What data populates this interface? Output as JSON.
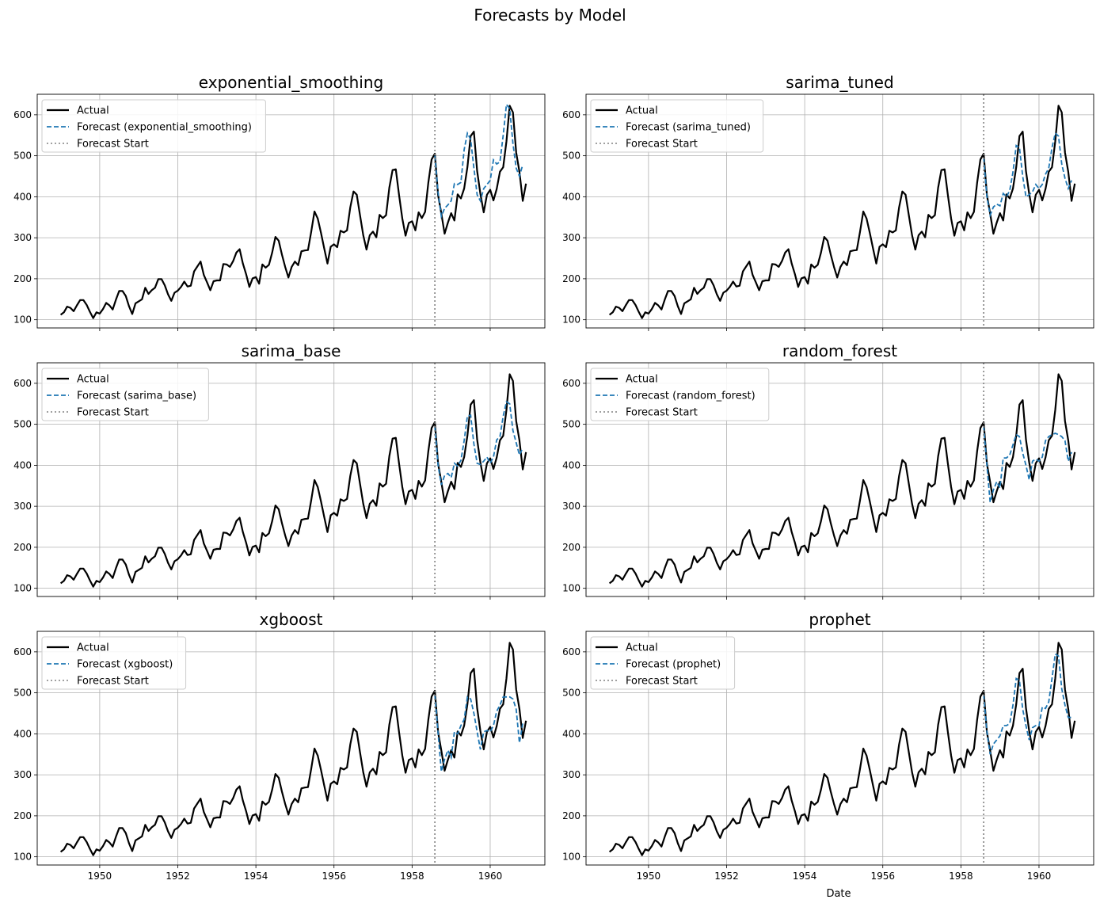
{
  "figure": {
    "title": "Forecasts by Model"
  },
  "legend_labels": {
    "actual": "Actual",
    "forecast_prefix": "Forecast (",
    "forecast_suffix": ")",
    "forecast_start": "Forecast Start"
  },
  "colors": {
    "actual": "#000000",
    "forecast": "#1f77b4",
    "forecast_start_line": "#808080",
    "grid": "#b0b0b0"
  },
  "chart_data": {
    "type": "line",
    "xlabel": "Date",
    "ylabel": "",
    "x_axis": {
      "start_year": 1949,
      "start_month": 1,
      "frequency": "monthly",
      "xlim": [
        "1948-06",
        "1961-06"
      ],
      "tick_labels": [
        "1950",
        "1952",
        "1954",
        "1956",
        "1958",
        "1960"
      ]
    },
    "y_axis": {
      "ylim": [
        80,
        650
      ],
      "tick_values": [
        100,
        200,
        300,
        400,
        500,
        600
      ]
    },
    "grid": true,
    "legend_placement": "upper-left",
    "forecast_start": "1958-08",
    "actual": [
      112,
      118,
      132,
      129,
      121,
      135,
      148,
      148,
      136,
      119,
      104,
      118,
      115,
      126,
      141,
      135,
      125,
      149,
      170,
      170,
      158,
      133,
      114,
      140,
      145,
      150,
      178,
      163,
      172,
      178,
      199,
      199,
      184,
      162,
      146,
      166,
      171,
      180,
      193,
      181,
      183,
      218,
      230,
      242,
      209,
      191,
      172,
      194,
      196,
      196,
      236,
      235,
      229,
      243,
      264,
      272,
      237,
      211,
      180,
      201,
      204,
      188,
      235,
      227,
      234,
      264,
      302,
      293,
      259,
      229,
      203,
      229,
      242,
      233,
      267,
      269,
      270,
      315,
      364,
      347,
      312,
      274,
      237,
      278,
      284,
      277,
      317,
      313,
      318,
      374,
      413,
      405,
      355,
      306,
      271,
      306,
      315,
      301,
      356,
      348,
      355,
      422,
      465,
      467,
      404,
      347,
      305,
      336,
      340,
      318,
      362,
      348,
      363,
      435,
      491,
      505,
      404,
      359,
      310,
      337,
      360,
      342,
      406,
      396,
      420,
      472,
      548,
      559,
      463,
      407,
      362,
      405,
      417,
      391,
      419,
      461,
      472,
      535,
      622,
      606,
      508,
      461,
      390,
      432
    ],
    "panels": [
      {
        "title": "exponential_smoothing",
        "model": "exponential_smoothing",
        "forecast": [
          500,
          410,
          352,
          372,
          380,
          390,
          432,
          430,
          435,
          515,
          555,
          540,
          470,
          405,
          390,
          420,
          430,
          440,
          490,
          480,
          485,
          550,
          625,
          615,
          530,
          470,
          450,
          478
        ]
      },
      {
        "title": "sarima_tuned",
        "model": "sarima_tuned",
        "forecast": [
          495,
          400,
          355,
          375,
          382,
          378,
          408,
          400,
          415,
          460,
          525,
          520,
          450,
          400,
          405,
          412,
          430,
          420,
          430,
          455,
          470,
          520,
          555,
          548,
          480,
          445,
          420,
          440
        ]
      },
      {
        "title": "sarima_base",
        "model": "sarima_base",
        "forecast": [
          495,
          400,
          352,
          375,
          380,
          370,
          405,
          398,
          412,
          460,
          520,
          522,
          452,
          405,
          402,
          410,
          420,
          405,
          420,
          462,
          470,
          520,
          555,
          550,
          485,
          455,
          425,
          442
        ]
      },
      {
        "title": "random_forest",
        "model": "random_forest",
        "forecast": [
          495,
          400,
          310,
          340,
          360,
          345,
          418,
          418,
          425,
          450,
          475,
          470,
          430,
          400,
          365,
          410,
          415,
          410,
          420,
          460,
          470,
          475,
          478,
          475,
          470,
          460,
          410,
          432
        ]
      },
      {
        "title": "xgboost",
        "model": "xgboost",
        "forecast": [
          495,
          402,
          308,
          338,
          360,
          342,
          405,
          400,
          420,
          435,
          490,
          485,
          450,
          405,
          362,
          405,
          408,
          405,
          420,
          455,
          470,
          490,
          490,
          490,
          485,
          460,
          378,
          425
        ]
      },
      {
        "title": "prophet",
        "model": "prophet",
        "forecast": [
          495,
          405,
          350,
          375,
          385,
          395,
          420,
          420,
          425,
          470,
          535,
          530,
          460,
          420,
          385,
          415,
          420,
          420,
          465,
          462,
          478,
          535,
          595,
          590,
          510,
          470,
          440,
          440
        ]
      }
    ]
  }
}
